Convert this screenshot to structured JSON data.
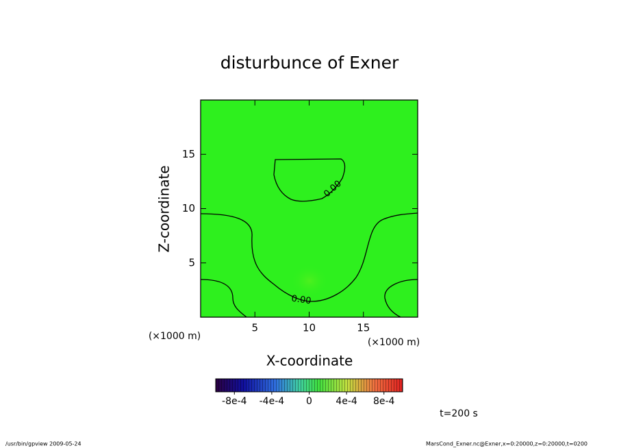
{
  "chart_data": {
    "type": "contour",
    "title": "disturbunce of Exner",
    "x_label": "X-coordinate",
    "y_label": "Z-coordinate",
    "x_unit_label": "(×1000 m)",
    "y_unit_label": "(×1000 m)",
    "xlim": [
      0,
      20
    ],
    "xticks": [
      5,
      10,
      15
    ],
    "ylim": [
      0,
      20
    ],
    "yticks": [
      5,
      10,
      15
    ],
    "contour_labels": [
      "0.00",
      "0.00"
    ],
    "colorbar": {
      "lim": [
        -0.001,
        0.001
      ],
      "ticks": [
        {
          "value": -0.0008,
          "label": "-8e-4"
        },
        {
          "value": -0.0004,
          "label": "-4e-4"
        },
        0,
        {
          "value": 0.0004,
          "label": "4e-4"
        },
        {
          "value": 0.0008,
          "label": "8e-4"
        }
      ]
    },
    "time_label": "t=200 s",
    "footer_left": "/usr/bin/gpview  2009-05-24",
    "footer_right": "MarsCond_Exner.nc@Exner,x=0:20000,z=0:20000,t=0200"
  }
}
